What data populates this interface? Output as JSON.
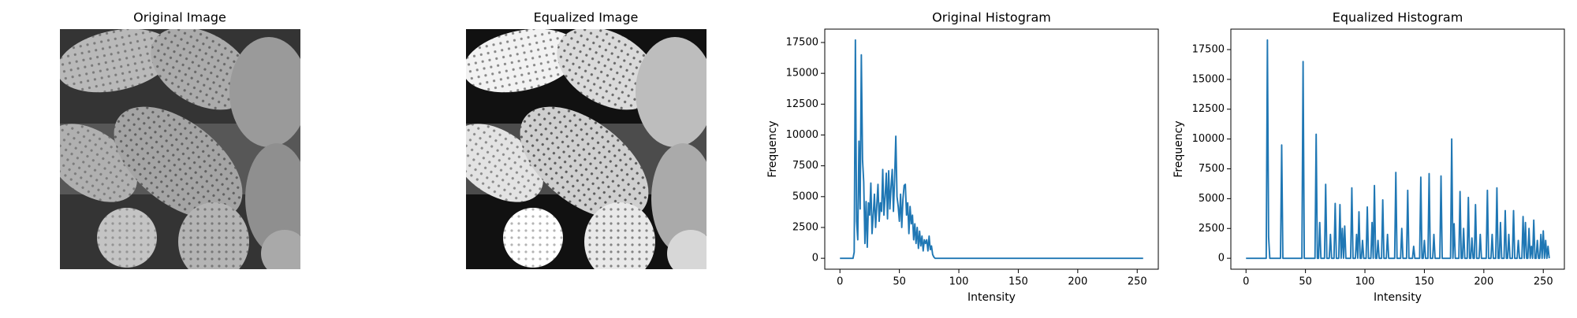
{
  "images": [
    {
      "title": "Original Image"
    },
    {
      "title": "Equalized Image"
    }
  ],
  "chart_data": [
    {
      "type": "line",
      "title": "Original Histogram",
      "xlabel": "Intensity",
      "ylabel": "Frequency",
      "xlim": [
        -12.75,
        267.75
      ],
      "ylim": [
        -885,
        18585
      ],
      "xticks": [
        0,
        50,
        100,
        150,
        200,
        250
      ],
      "yticks": [
        0,
        2500,
        5000,
        7500,
        10000,
        12500,
        15000,
        17500
      ],
      "color": "#1f77b4",
      "x": [
        0,
        1,
        2,
        3,
        4,
        5,
        6,
        7,
        8,
        9,
        10,
        11,
        12,
        13,
        14,
        15,
        16,
        17,
        18,
        19,
        20,
        21,
        22,
        23,
        24,
        25,
        26,
        27,
        28,
        29,
        30,
        31,
        32,
        33,
        34,
        35,
        36,
        37,
        38,
        39,
        40,
        41,
        42,
        43,
        44,
        45,
        46,
        47,
        48,
        49,
        50,
        51,
        52,
        53,
        54,
        55,
        56,
        57,
        58,
        59,
        60,
        61,
        62,
        63,
        64,
        65,
        66,
        67,
        68,
        69,
        70,
        71,
        72,
        73,
        74,
        75,
        76,
        77,
        78,
        79,
        80,
        81,
        82,
        83,
        84,
        85,
        86,
        87,
        88,
        89,
        90,
        91,
        92,
        93,
        94,
        95,
        96,
        97,
        98,
        99,
        100,
        101,
        102,
        103,
        104,
        105,
        106,
        107,
        108,
        109,
        110,
        111,
        112,
        113,
        114,
        115,
        116,
        117,
        118,
        119,
        120,
        121,
        122,
        123,
        124,
        125,
        126,
        127,
        128,
        129,
        130,
        131,
        132,
        133,
        134,
        135,
        136,
        137,
        138,
        139,
        140,
        141,
        142,
        143,
        144,
        145,
        146,
        147,
        148,
        149,
        150,
        151,
        152,
        153,
        154,
        155,
        156,
        157,
        158,
        159,
        160,
        161,
        162,
        163,
        164,
        165,
        166,
        167,
        168,
        169,
        170,
        171,
        172,
        173,
        174,
        175,
        176,
        177,
        178,
        179,
        180,
        181,
        182,
        183,
        184,
        185,
        186,
        187,
        188,
        189,
        190,
        191,
        192,
        193,
        194,
        195,
        196,
        197,
        198,
        199,
        200,
        201,
        202,
        203,
        204,
        205,
        206,
        207,
        208,
        209,
        210,
        211,
        212,
        213,
        214,
        215,
        216,
        217,
        218,
        219,
        220,
        221,
        222,
        223,
        224,
        225,
        226,
        227,
        228,
        229,
        230,
        231,
        232,
        233,
        234,
        235,
        236,
        237,
        238,
        239,
        240,
        241,
        242,
        243,
        244,
        245,
        246,
        247,
        248,
        249,
        250,
        251,
        252,
        253,
        254,
        255
      ],
      "values": [
        0,
        0,
        0,
        0,
        0,
        0,
        0,
        0,
        0,
        0,
        0,
        0,
        500,
        17700,
        3000,
        1500,
        9500,
        4000,
        16500,
        8000,
        6200,
        1200,
        4600,
        900,
        4500,
        3500,
        6100,
        2000,
        3500,
        5200,
        2500,
        4300,
        6000,
        3000,
        4500,
        3800,
        7200,
        3500,
        5000,
        6900,
        3200,
        7100,
        4000,
        5800,
        7200,
        3800,
        6500,
        9900,
        5000,
        4200,
        3000,
        5200,
        2500,
        4800,
        5900,
        6000,
        3500,
        4500,
        2000,
        4200,
        2800,
        3500,
        1500,
        2800,
        1200,
        2500,
        800,
        2200,
        1000,
        1800,
        600,
        1500,
        1200,
        1500,
        600,
        1800,
        700,
        1000,
        300,
        100,
        0,
        0,
        0,
        0,
        0,
        0,
        0,
        0,
        0,
        0,
        0,
        0,
        0,
        0,
        0,
        0,
        0,
        0,
        0,
        0,
        0,
        0,
        0,
        0,
        0,
        0,
        0,
        0,
        0,
        0,
        0,
        0,
        0,
        0,
        0,
        0,
        0,
        0,
        0,
        0,
        0,
        0,
        0,
        0,
        0,
        0,
        0,
        0,
        0,
        0,
        0,
        0,
        0,
        0,
        0,
        0,
        0,
        0,
        0,
        0,
        0,
        0,
        0,
        0,
        0,
        0,
        0,
        0,
        0,
        0,
        0,
        0,
        0,
        0,
        0,
        0,
        0,
        0,
        0,
        0,
        0,
        0,
        0,
        0,
        0,
        0,
        0,
        0,
        0,
        0,
        0,
        0,
        0,
        0,
        0,
        0,
        0,
        0,
        0,
        0,
        0,
        0,
        0,
        0,
        0,
        0,
        0,
        0,
        0,
        0,
        0,
        0,
        0,
        0,
        0,
        0,
        0,
        0,
        0,
        0,
        0,
        0,
        0,
        0,
        0,
        0,
        0,
        0,
        0,
        0,
        0,
        0,
        0,
        0,
        0,
        0,
        0,
        0,
        0,
        0,
        0,
        0,
        0,
        0,
        0,
        0,
        0,
        0,
        0,
        0,
        0,
        0,
        0,
        0,
        0,
        0,
        0,
        0,
        0,
        0,
        0,
        0,
        0,
        0,
        0,
        0,
        0,
        0,
        0,
        0,
        0,
        0,
        0,
        0,
        0,
        0
      ]
    },
    {
      "type": "line",
      "title": "Equalized Histogram",
      "xlabel": "Intensity",
      "ylabel": "Frequency",
      "xlim": [
        -12.75,
        267.75
      ],
      "ylim": [
        -915,
        19215
      ],
      "xticks": [
        0,
        50,
        100,
        150,
        200,
        250
      ],
      "yticks": [
        0,
        2500,
        5000,
        7500,
        10000,
        12500,
        15000,
        17500
      ],
      "color": "#1f77b4",
      "x": [
        0,
        1,
        2,
        3,
        4,
        5,
        6,
        7,
        8,
        9,
        10,
        11,
        12,
        13,
        14,
        15,
        16,
        17,
        18,
        19,
        20,
        21,
        22,
        23,
        24,
        25,
        26,
        27,
        28,
        29,
        30,
        31,
        32,
        33,
        34,
        35,
        36,
        37,
        38,
        39,
        40,
        41,
        42,
        43,
        44,
        45,
        46,
        47,
        48,
        49,
        50,
        51,
        52,
        53,
        54,
        55,
        56,
        57,
        58,
        59,
        60,
        61,
        62,
        63,
        64,
        65,
        66,
        67,
        68,
        69,
        70,
        71,
        72,
        73,
        74,
        75,
        76,
        77,
        78,
        79,
        80,
        81,
        82,
        83,
        84,
        85,
        86,
        87,
        88,
        89,
        90,
        91,
        92,
        93,
        94,
        95,
        96,
        97,
        98,
        99,
        100,
        101,
        102,
        103,
        104,
        105,
        106,
        107,
        108,
        109,
        110,
        111,
        112,
        113,
        114,
        115,
        116,
        117,
        118,
        119,
        120,
        121,
        122,
        123,
        124,
        125,
        126,
        127,
        128,
        129,
        130,
        131,
        132,
        133,
        134,
        135,
        136,
        137,
        138,
        139,
        140,
        141,
        142,
        143,
        144,
        145,
        146,
        147,
        148,
        149,
        150,
        151,
        152,
        153,
        154,
        155,
        156,
        157,
        158,
        159,
        160,
        161,
        162,
        163,
        164,
        165,
        166,
        167,
        168,
        169,
        170,
        171,
        172,
        173,
        174,
        175,
        176,
        177,
        178,
        179,
        180,
        181,
        182,
        183,
        184,
        185,
        186,
        187,
        188,
        189,
        190,
        191,
        192,
        193,
        194,
        195,
        196,
        197,
        198,
        199,
        200,
        201,
        202,
        203,
        204,
        205,
        206,
        207,
        208,
        209,
        210,
        211,
        212,
        213,
        214,
        215,
        216,
        217,
        218,
        219,
        220,
        221,
        222,
        223,
        224,
        225,
        226,
        227,
        228,
        229,
        230,
        231,
        232,
        233,
        234,
        235,
        236,
        237,
        238,
        239,
        240,
        241,
        242,
        243,
        244,
        245,
        246,
        247,
        248,
        249,
        250,
        251,
        252,
        253,
        254,
        255
      ],
      "values": [
        0,
        0,
        0,
        0,
        0,
        0,
        0,
        0,
        0,
        0,
        0,
        0,
        0,
        0,
        0,
        0,
        0,
        0,
        18300,
        1800,
        0,
        0,
        0,
        0,
        0,
        0,
        0,
        0,
        0,
        0,
        9500,
        0,
        0,
        0,
        0,
        0,
        0,
        0,
        0,
        0,
        0,
        0,
        0,
        0,
        0,
        0,
        0,
        0,
        16500,
        0,
        0,
        0,
        0,
        0,
        0,
        0,
        0,
        0,
        0,
        10400,
        0,
        0,
        3000,
        0,
        0,
        0,
        0,
        6200,
        0,
        0,
        0,
        2000,
        0,
        0,
        0,
        4600,
        0,
        0,
        0,
        4500,
        0,
        2500,
        0,
        2700,
        0,
        0,
        0,
        0,
        0,
        5900,
        0,
        0,
        0,
        2000,
        0,
        3900,
        0,
        0,
        1500,
        0,
        0,
        0,
        4300,
        0,
        0,
        0,
        3000,
        0,
        6100,
        0,
        0,
        1500,
        0,
        0,
        0,
        4900,
        0,
        0,
        0,
        2000,
        0,
        0,
        0,
        0,
        0,
        0,
        7200,
        0,
        0,
        0,
        0,
        2500,
        0,
        0,
        0,
        0,
        5700,
        0,
        0,
        0,
        0,
        1000,
        0,
        0,
        0,
        0,
        0,
        6800,
        0,
        0,
        1500,
        0,
        0,
        0,
        7100,
        0,
        0,
        0,
        2000,
        0,
        0,
        0,
        0,
        0,
        6900,
        0,
        0,
        0,
        0,
        0,
        0,
        0,
        0,
        10000,
        0,
        2900,
        0,
        0,
        0,
        0,
        5600,
        0,
        0,
        2500,
        0,
        0,
        0,
        5100,
        0,
        0,
        1700,
        0,
        0,
        4500,
        0,
        0,
        0,
        2000,
        0,
        0,
        0,
        0,
        0,
        5700,
        0,
        0,
        0,
        2000,
        0,
        0,
        0,
        5900,
        0,
        0,
        3000,
        0,
        0,
        0,
        4000,
        0,
        0,
        2000,
        0,
        0,
        0,
        4000,
        0,
        0,
        0,
        1500,
        0,
        0,
        0,
        3500,
        0,
        3000,
        0,
        0,
        2500,
        0,
        1000,
        0,
        3200,
        0,
        0,
        1500,
        0,
        0,
        2000,
        0,
        2300,
        0,
        1500,
        0,
        1000,
        0
      ]
    }
  ]
}
